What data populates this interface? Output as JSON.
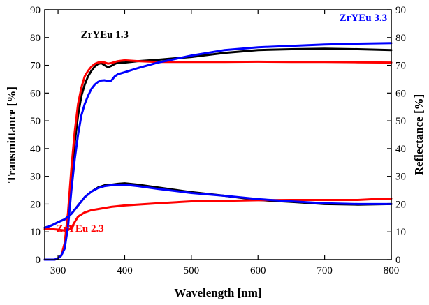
{
  "chart_data": {
    "type": "line",
    "xlabel": "Wavelength [nm]",
    "ylabel": "Transmittance [%]",
    "y2label": "Reflectance [%]",
    "xlim": [
      280,
      800
    ],
    "ylim": [
      0,
      90
    ],
    "y2lim": [
      0,
      90
    ],
    "xticks": [
      300,
      400,
      500,
      600,
      700,
      800
    ],
    "yticks": [
      0,
      10,
      20,
      30,
      40,
      50,
      60,
      70,
      80,
      90
    ],
    "grid": false,
    "series": [
      {
        "name": "ZrYEu 1.3",
        "color": "#000000",
        "transmittance": {
          "x": [
            280,
            295,
            300,
            305,
            310,
            315,
            320,
            325,
            330,
            335,
            340,
            345,
            350,
            355,
            360,
            365,
            370,
            375,
            380,
            385,
            390,
            400,
            420,
            450,
            500,
            550,
            600,
            650,
            700,
            750,
            800
          ],
          "y": [
            0,
            0,
            0.5,
            1.5,
            5,
            15,
            30,
            42,
            52,
            59,
            63,
            66,
            68,
            69.5,
            70.5,
            70.8,
            70,
            69.3,
            69.8,
            70.5,
            71,
            71,
            71.5,
            72,
            73,
            74.5,
            75.5,
            75.8,
            76,
            75.8,
            75.5
          ]
        },
        "reflectance": {
          "x": [
            280,
            290,
            300,
            310,
            320,
            330,
            340,
            350,
            360,
            370,
            380,
            390,
            400,
            420,
            450,
            500,
            550,
            600,
            650,
            700,
            750,
            800
          ],
          "y": [
            11.5,
            12.3,
            13.5,
            14.5,
            16.5,
            19.5,
            22.5,
            24.5,
            26,
            26.8,
            27,
            27.3,
            27.5,
            27,
            26,
            24.3,
            23,
            21.5,
            20.8,
            20,
            19.8,
            20
          ]
        },
        "label_anchor": [
          370,
          80
        ]
      },
      {
        "name": "ZrYEu 2.3",
        "color": "#ff0000",
        "transmittance": {
          "x": [
            280,
            295,
            300,
            305,
            310,
            315,
            320,
            325,
            330,
            335,
            340,
            345,
            350,
            355,
            360,
            365,
            370,
            375,
            380,
            385,
            390,
            400,
            420,
            450,
            500,
            550,
            600,
            650,
            700,
            750,
            800
          ],
          "y": [
            0,
            0,
            0.5,
            1.5,
            6,
            17,
            33,
            46,
            56,
            62,
            66,
            68,
            69.5,
            70.5,
            71,
            71.2,
            71,
            70.6,
            70.8,
            71.2,
            71.5,
            71.8,
            71.5,
            71.2,
            71.2,
            71.2,
            71.3,
            71.2,
            71.2,
            71.1,
            71
          ]
        },
        "reflectance": {
          "x": [
            280,
            290,
            300,
            310,
            315,
            320,
            325,
            330,
            340,
            350,
            360,
            370,
            380,
            400,
            450,
            500,
            550,
            600,
            650,
            700,
            750,
            790,
            800
          ],
          "y": [
            11,
            11,
            10.8,
            10.5,
            10.6,
            11.5,
            13.5,
            15.5,
            17,
            17.8,
            18.2,
            18.6,
            19,
            19.5,
            20.3,
            21,
            21.2,
            21.4,
            21.5,
            21.5,
            21.5,
            22,
            22
          ]
        },
        "label_anchor": [
          333,
          10
        ]
      },
      {
        "name": "ZrYEu 3.3",
        "color": "#0000ff",
        "transmittance": {
          "x": [
            280,
            295,
            300,
            305,
            310,
            315,
            320,
            325,
            330,
            335,
            340,
            345,
            350,
            355,
            360,
            365,
            370,
            375,
            380,
            385,
            390,
            400,
            420,
            450,
            500,
            550,
            600,
            650,
            700,
            750,
            800
          ],
          "y": [
            0,
            0,
            0.5,
            1.5,
            4,
            12,
            25,
            36,
            45,
            52,
            56,
            59,
            61.5,
            63,
            64,
            64.5,
            64.6,
            64.2,
            64.5,
            66,
            66.8,
            67.5,
            69,
            71,
            73.5,
            75.5,
            76.5,
            77,
            77.5,
            77.8,
            78
          ]
        },
        "reflectance": {
          "x": [
            280,
            290,
            300,
            310,
            320,
            330,
            340,
            350,
            360,
            370,
            380,
            390,
            400,
            420,
            450,
            500,
            550,
            600,
            650,
            700,
            750,
            800
          ],
          "y": [
            11.5,
            12.3,
            13.5,
            14.5,
            16.5,
            19.5,
            22.5,
            24.5,
            25.8,
            26.5,
            26.8,
            27,
            27,
            26.5,
            25.5,
            24,
            23,
            21.8,
            21,
            20.3,
            20,
            20
          ]
        },
        "label_anchor": [
          758,
          86
        ]
      }
    ]
  }
}
